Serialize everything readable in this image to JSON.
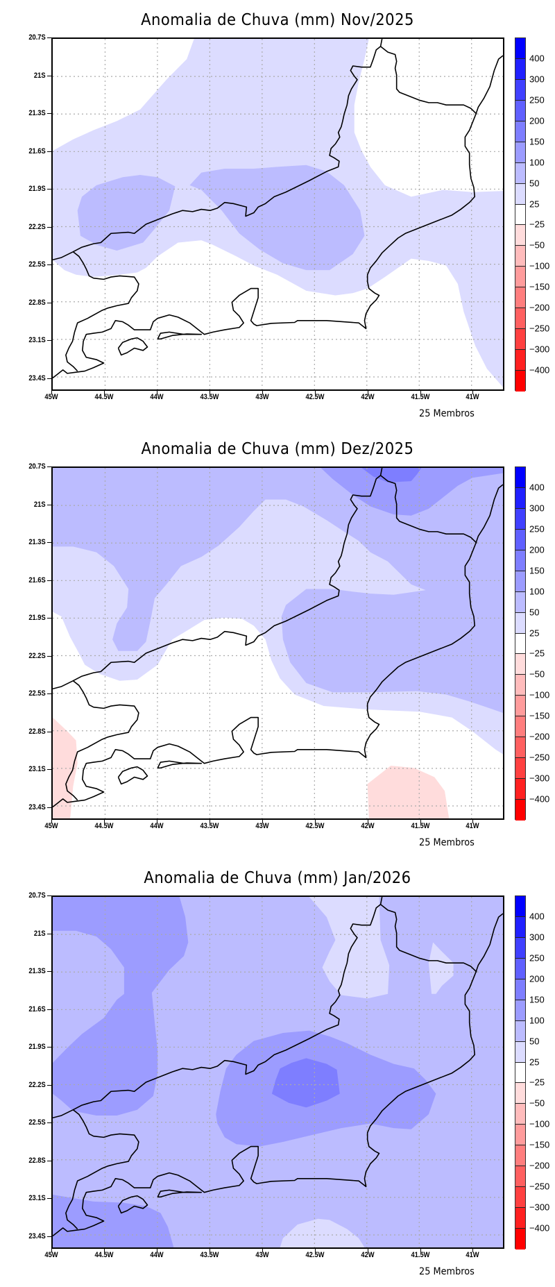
{
  "panels": [
    {
      "title": "Anomalia de Chuva (mm) Nov/2025",
      "footer": "25 Membros"
    },
    {
      "title": "Anomalia de Chuva (mm) Dez/2025",
      "footer": "25 Membros"
    },
    {
      "title": "Anomalia de Chuva (mm) Jan/2026",
      "footer": "25 Membros"
    }
  ],
  "axes": {
    "x_labels": [
      "45W",
      "44.5W",
      "44W",
      "43.5W",
      "43W",
      "42.5W",
      "42W",
      "41.5W",
      "41W"
    ],
    "x_values": [
      -45,
      -44.5,
      -44,
      -43.5,
      -43,
      -42.5,
      -42,
      -41.5,
      -41
    ],
    "y_labels": [
      "20.7S",
      "21S",
      "21.3S",
      "21.6S",
      "21.9S",
      "22.2S",
      "22.5S",
      "22.8S",
      "23.1S",
      "23.4S"
    ],
    "y_values": [
      -20.7,
      -21,
      -21.3,
      -21.6,
      -21.9,
      -22.2,
      -22.5,
      -22.8,
      -23.1,
      -23.4
    ],
    "lon_range": [
      -45,
      -40.7
    ],
    "lat_range": [
      -23.5,
      -20.7
    ]
  },
  "colorbar": {
    "labels": [
      "400",
      "300",
      "250",
      "200",
      "150",
      "100",
      "50",
      "25",
      "−25",
      "−50",
      "−100",
      "−150",
      "−200",
      "−250",
      "−300",
      "−400"
    ],
    "colors": [
      "#0000ff",
      "#2020ff",
      "#4040ff",
      "#6060ff",
      "#7e7eff",
      "#9c9cff",
      "#bcbcff",
      "#dcdcff",
      "#ffffff",
      "#ffdcdc",
      "#ffbcbc",
      "#ff9c9c",
      "#ff7e7e",
      "#ff6060",
      "#ff4040",
      "#ff2020",
      "#ff0000"
    ]
  }
}
